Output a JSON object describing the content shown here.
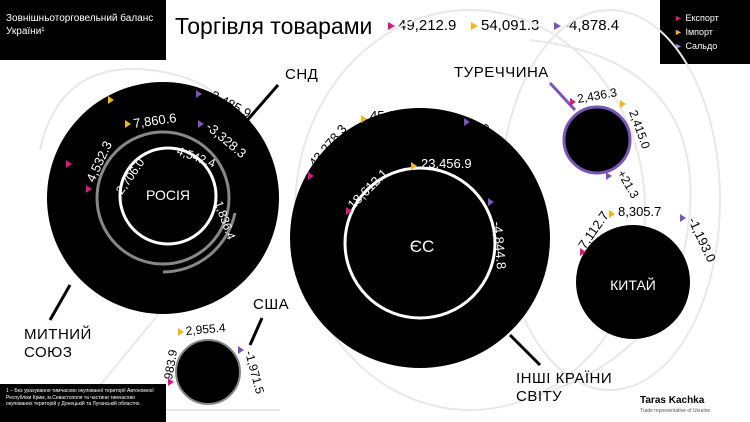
{
  "header": {
    "panel_title": "Зовнішньоторговельний баланс України¹",
    "main_title": "Торгівля товарами",
    "totals": {
      "export": "49,212.9",
      "import": "54,091.3",
      "balance": "-4,878.4"
    }
  },
  "legend": {
    "items": [
      {
        "label": "Експорт",
        "color": "#d9187a"
      },
      {
        "label": "Імпорт",
        "color": "#f2b51c"
      },
      {
        "label": "Сальдо",
        "color": "#7a55b8"
      }
    ]
  },
  "regions": {
    "cis": {
      "label": "СНД",
      "export": "5,934.6",
      "import": "8,420.5",
      "balance": "-2,485.9"
    },
    "customs_union": {
      "label": "МИТНИЙ СОЮЗ",
      "export": "4,532.3",
      "import": "7,860.6",
      "balance": "-3,328.3"
    },
    "russia": {
      "label": "РОСІЯ",
      "export": "2,706.0",
      "import": "4,542.4",
      "balance": "-1,836.4"
    },
    "rest_world": {
      "label": "ІНШІ КРАЇНИ СВІТУ",
      "export": "43,278.3",
      "import": "45,670.8",
      "balance": "-2,392.5"
    },
    "eu": {
      "label": "ЄС",
      "export": "18,612.1",
      "import": "23,456.9",
      "balance": "-4,844.8"
    },
    "usa": {
      "label": "США",
      "export": "983.9",
      "import": "2,955.4",
      "balance": "-1,971.5"
    },
    "turkey": {
      "label": "ТУРЕЧЧИНА",
      "export": "2,436.3",
      "import": "2,415.0",
      "balance": "+21.3"
    },
    "china": {
      "label": "КИТАЙ",
      "export": "7,112.7",
      "import": "8,305.7",
      "balance": "-1,193.0"
    }
  },
  "footnote": "1 – Без урахування тимчасово окупованої території Автономної Республіки Крим, м.Севастополя та частини тимчасово окупованих територій у Донецькій та Луганській областях.",
  "brand": {
    "name": "Taras Kachka",
    "subtitle": "Trade representative of Ukraine"
  }
}
